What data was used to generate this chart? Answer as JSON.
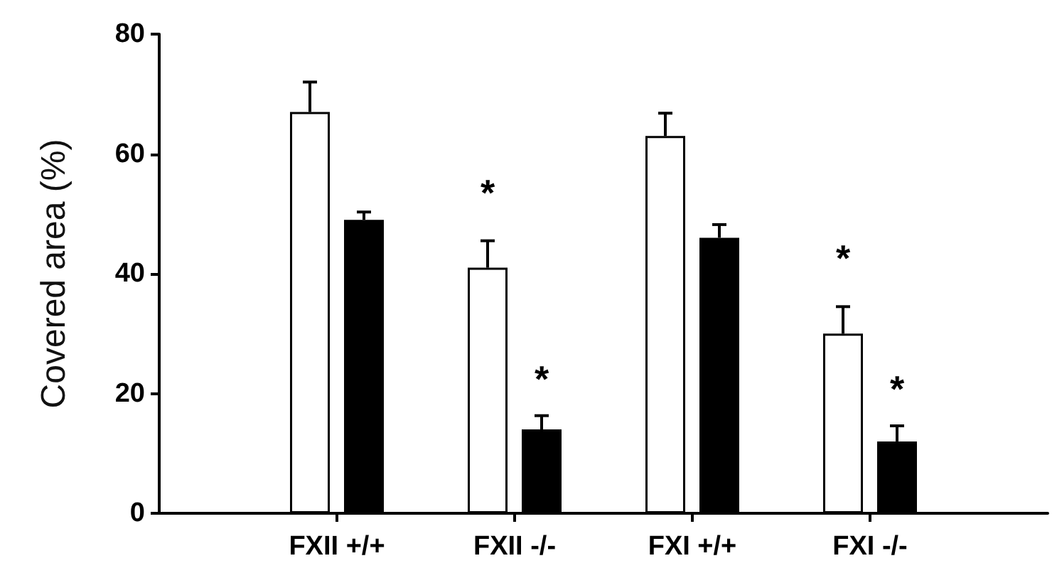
{
  "chart_data": {
    "type": "bar",
    "ylabel": "Covered area (%)",
    "categories": [
      null,
      "FXII +/+",
      "FXII -/-",
      "FXI +/+",
      "FXI -/-",
      null
    ],
    "series": [
      {
        "color": "#ffffff",
        "values": [
          null,
          67,
          41,
          63,
          30,
          null
        ],
        "errors": [
          null,
          [
            67,
            72
          ],
          [
            41,
            45.5
          ],
          [
            63,
            66.8
          ],
          [
            30,
            34.5
          ],
          null
        ]
      },
      {
        "color": "#000000",
        "values": [
          null,
          49,
          14,
          46,
          12,
          null
        ],
        "errors": [
          null,
          [
            49,
            50.3
          ],
          [
            14,
            16.3
          ],
          [
            46,
            48.2
          ],
          [
            12,
            14.6
          ],
          null
        ]
      }
    ],
    "ylim": [
      0,
      80
    ],
    "yticks": [
      0,
      20,
      40,
      60,
      80
    ],
    "grid": false,
    "annotations": [
      "*",
      "*",
      "*",
      "*"
    ]
  }
}
